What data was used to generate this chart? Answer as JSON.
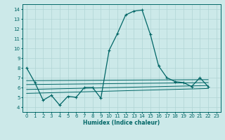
{
  "xlabel": "Humidex (Indice chaleur)",
  "background_color": "#cce9e9",
  "grid_color": "#b0d4d4",
  "line_color": "#006666",
  "xlim": [
    -0.5,
    23.5
  ],
  "ylim": [
    3.5,
    14.5
  ],
  "x_ticks": [
    0,
    1,
    2,
    3,
    4,
    5,
    6,
    7,
    8,
    9,
    10,
    11,
    12,
    13,
    14,
    15,
    16,
    17,
    18,
    19,
    20,
    21,
    22,
    23
  ],
  "y_ticks": [
    4,
    5,
    6,
    7,
    8,
    9,
    10,
    11,
    12,
    13,
    14
  ],
  "line1_x": [
    0,
    1,
    2,
    3,
    4,
    5,
    6,
    7,
    8,
    9,
    10,
    11,
    12,
    13,
    14,
    15,
    16,
    17,
    18,
    19,
    20,
    21,
    22
  ],
  "line1_y": [
    8.0,
    6.5,
    4.7,
    5.2,
    4.2,
    5.1,
    5.0,
    6.0,
    6.0,
    4.9,
    9.8,
    11.5,
    13.4,
    13.8,
    13.9,
    11.4,
    8.2,
    7.0,
    6.6,
    6.5,
    6.1,
    7.0,
    6.1
  ],
  "line2_x": [
    0,
    22
  ],
  "line2_y": [
    6.7,
    6.8
  ],
  "line3_x": [
    0,
    22
  ],
  "line3_y": [
    6.3,
    6.5
  ],
  "line4_x": [
    0,
    22
  ],
  "line4_y": [
    5.8,
    6.2
  ],
  "line5_x": [
    0,
    22
  ],
  "line5_y": [
    5.4,
    5.9
  ],
  "figwidth": 3.2,
  "figheight": 2.0,
  "dpi": 100
}
